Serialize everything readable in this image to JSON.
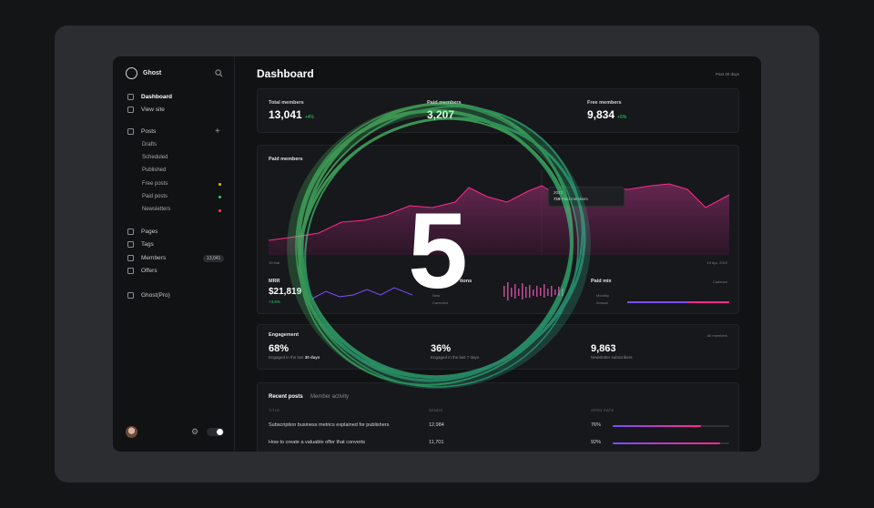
{
  "sidebar": {
    "brand": "Ghost",
    "items": [
      {
        "label": "Dashboard"
      },
      {
        "label": "View site"
      },
      {
        "label": "Posts"
      },
      {
        "label": "Drafts"
      },
      {
        "label": "Scheduled"
      },
      {
        "label": "Published"
      },
      {
        "label": "Free posts"
      },
      {
        "label": "Paid posts"
      },
      {
        "label": "Newsletters"
      },
      {
        "label": "Pages"
      },
      {
        "label": "Tags"
      },
      {
        "label": "Members"
      },
      {
        "label": "Offers"
      },
      {
        "label": "Ghost(Pro)"
      }
    ],
    "members_count": "13,041",
    "dot_colors": {
      "free": "#f5b700",
      "paid": "#2fd16e",
      "newsletters": "#ff3b5c"
    }
  },
  "header": {
    "title": "Dashboard",
    "range": "Past 30 days"
  },
  "stats": [
    {
      "label": "Total members",
      "value": "13,041",
      "delta": "+4%"
    },
    {
      "label": "Paid members",
      "value": "3,207",
      "delta": ""
    },
    {
      "label": "Free members",
      "value": "9,834",
      "delta": "+6%"
    }
  ],
  "paid_chart": {
    "title": "Paid members",
    "start": "19 Mar",
    "end": "19 Apr, 2022",
    "tooltip_date": "2022",
    "tooltip_value": "719",
    "tooltip_label": "Paid members"
  },
  "mrr": {
    "label": "MRR",
    "value": "$21,819",
    "delta": "+3.6%"
  },
  "subscriptions": {
    "label": "tions",
    "legend1": "New",
    "legend2": "Canceled"
  },
  "paid_mix": {
    "label": "Paid mix",
    "filter": "Cadence",
    "legend1": "Monthly",
    "legend2": "Annual"
  },
  "engagement": {
    "title": "Engagement",
    "filter": "All members",
    "items": [
      {
        "value": "68%",
        "caption": "Engaged in the last",
        "caption_bold": "30 days"
      },
      {
        "value": "36%",
        "caption": "Engaged in the last 7 days"
      },
      {
        "value": "9,863",
        "caption": "Newsletter subscribers"
      }
    ]
  },
  "posts": {
    "tabs": [
      "Recent posts",
      "Member activity"
    ],
    "columns": [
      "TITLE",
      "SENDS",
      "OPEN RATE"
    ],
    "rows": [
      {
        "title": "Subscription business metrics explained for publishers",
        "sends": "12,984",
        "open_rate": "76%",
        "open_fraction": 0.76
      },
      {
        "title": "How to create a valuable offer that converts",
        "sends": "11,701",
        "open_rate": "92%",
        "open_fraction": 0.92
      }
    ]
  },
  "overlay": {
    "number": "5"
  },
  "colors": {
    "accent": "#ff2a8a",
    "area": "#5a1f45",
    "ring": "#3df08a",
    "positive": "#2fd16e"
  }
}
